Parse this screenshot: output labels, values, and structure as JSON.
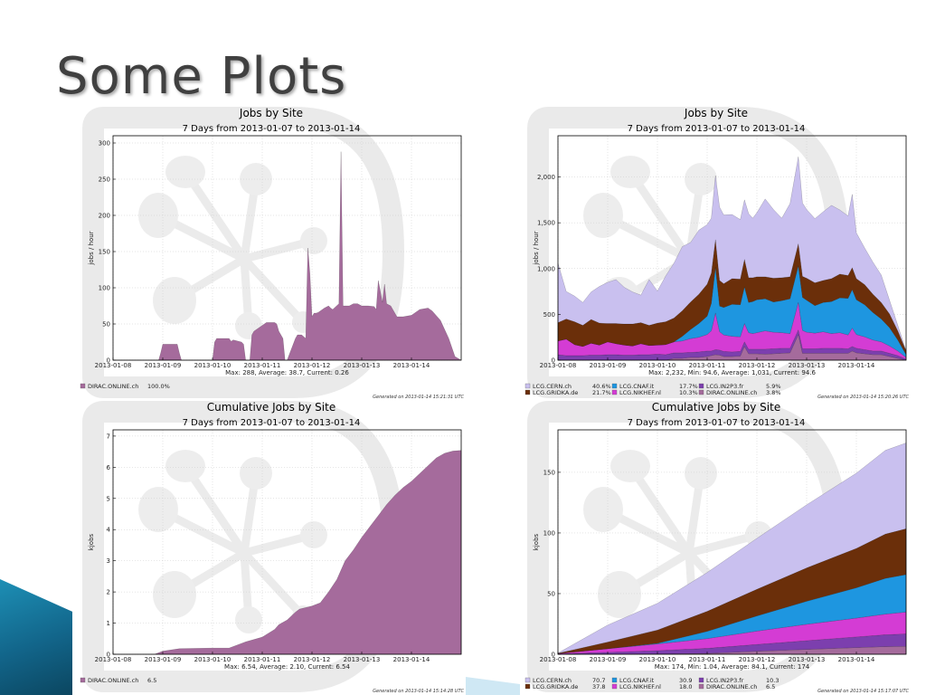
{
  "slide": {
    "title": "Some Plots"
  },
  "chart_data": [
    {
      "type": "area",
      "title": "Jobs by Site",
      "subtitle": "7 Days from 2013-01-07 to 2013-01-14",
      "ylabel": "jobs / hour",
      "xlabel": "",
      "ylim": [
        0,
        310
      ],
      "yticks": [
        0,
        50,
        100,
        150,
        200,
        250,
        300
      ],
      "yticklabels": [
        "0",
        "50",
        "100",
        "150",
        "200",
        "250",
        "300"
      ],
      "xlim": [
        0,
        168
      ],
      "xticks": [
        0,
        24,
        48,
        72,
        96,
        120,
        144
      ],
      "xticklabels": [
        "2013-01-08",
        "2013-01-09",
        "2013-01-10",
        "2013-01-11",
        "2013-01-12",
        "2013-01-13",
        "2013-01-14"
      ],
      "stats": "Max: 288, Average: 38.7, Current: 0.26",
      "generated": "Generated on 2013-01-14 15:21:31 UTC",
      "grid": true,
      "legend": [
        {
          "name": "DIRAC.ONLINE.ch",
          "value": "100.0%",
          "color": "#a56b9c"
        }
      ],
      "x": [
        0,
        22,
        23,
        24,
        31,
        32,
        33,
        48,
        49,
        50,
        56,
        57,
        58,
        62,
        63,
        64,
        66,
        67,
        68,
        72,
        73,
        74,
        78,
        79,
        80,
        82,
        83,
        84,
        88,
        89,
        91,
        93,
        94,
        95,
        96,
        97,
        98,
        99,
        100,
        101,
        102,
        104,
        105,
        106,
        109,
        110,
        111,
        114,
        116,
        118,
        120,
        123,
        126,
        127,
        128,
        130,
        131,
        132,
        134,
        137,
        140,
        144,
        148,
        152,
        154,
        158,
        162,
        165,
        168
      ],
      "series": [
        {
          "name": "DIRAC.ONLINE.ch",
          "color": "#a56b9c",
          "values": [
            0,
            0,
            10,
            22,
            22,
            10,
            0,
            0,
            25,
            30,
            30,
            26,
            28,
            25,
            22,
            0,
            0,
            35,
            40,
            48,
            50,
            52,
            52,
            50,
            40,
            30,
            0,
            0,
            30,
            35,
            35,
            30,
            155,
            120,
            60,
            65,
            65,
            66,
            68,
            70,
            72,
            75,
            72,
            70,
            78,
            288,
            75,
            75,
            78,
            78,
            75,
            75,
            74,
            70,
            110,
            80,
            105,
            78,
            75,
            60,
            60,
            62,
            70,
            72,
            68,
            55,
            30,
            5,
            0
          ]
        }
      ]
    },
    {
      "type": "area",
      "title": "Jobs by Site",
      "subtitle": "7 Days from 2013-01-07 to 2013-01-14",
      "ylabel": "jobs / hour",
      "xlabel": "",
      "ylim": [
        0,
        2450
      ],
      "yticks": [
        0,
        500,
        1000,
        1500,
        2000
      ],
      "yticklabels": [
        "0",
        "500",
        "1,000",
        "1,500",
        "2,000"
      ],
      "xlim": [
        0,
        168
      ],
      "xticks": [
        0,
        24,
        48,
        72,
        96,
        120,
        144
      ],
      "xticklabels": [
        "2013-01-08",
        "2013-01-09",
        "2013-01-10",
        "2013-01-11",
        "2013-01-12",
        "2013-01-13",
        "2013-01-14"
      ],
      "stats": "Max: 2,232, Min: 94.6, Average: 1,031, Current: 94.6",
      "generated": "Generated on 2013-01-14 15:20:26 UTC",
      "grid": true,
      "legend": [
        {
          "name": "LCG.CERN.ch",
          "value": "40.6%",
          "color": "#c9c0ef"
        },
        {
          "name": "LCG.GRIDKA.de",
          "value": "21.7%",
          "color": "#6b2f0a"
        },
        {
          "name": "LCG.CNAF.it",
          "value": "17.7%",
          "color": "#1e96e0"
        },
        {
          "name": "LCG.NIKHEF.nl",
          "value": "10.3%",
          "color": "#d43cd4"
        },
        {
          "name": "LCG.IN2P3.fr",
          "value": "5.9%",
          "color": "#7c3fae"
        },
        {
          "name": "DIRAC.ONLINE.ch",
          "value": "3.8%",
          "color": "#a56b9c"
        }
      ],
      "x": [
        0,
        4,
        8,
        12,
        16,
        20,
        24,
        28,
        32,
        36,
        40,
        44,
        48,
        52,
        56,
        60,
        64,
        68,
        72,
        74,
        76,
        78,
        80,
        84,
        88,
        90,
        92,
        94,
        96,
        100,
        104,
        108,
        112,
        116,
        118,
        120,
        124,
        128,
        132,
        136,
        140,
        142,
        144,
        148,
        152,
        156,
        160,
        164,
        168
      ],
      "series": [
        {
          "name": "DIRAC.ONLINE.ch",
          "color": "#a56b9c",
          "values": [
            0,
            0,
            0,
            0,
            0,
            0,
            0,
            0,
            0,
            0,
            0,
            0,
            0,
            0,
            20,
            20,
            30,
            30,
            40,
            50,
            60,
            55,
            40,
            40,
            45,
            150,
            70,
            70,
            70,
            65,
            70,
            75,
            80,
            280,
            75,
            75,
            75,
            75,
            75,
            75,
            75,
            100,
            80,
            70,
            60,
            60,
            40,
            20,
            0
          ]
        },
        {
          "name": "LCG.IN2P3.fr",
          "color": "#7c3fae",
          "values": [
            60,
            50,
            50,
            50,
            55,
            55,
            60,
            60,
            55,
            55,
            60,
            60,
            65,
            60,
            60,
            60,
            55,
            60,
            60,
            50,
            55,
            55,
            55,
            50,
            50,
            50,
            50,
            50,
            50,
            55,
            55,
            55,
            50,
            50,
            50,
            50,
            50,
            55,
            55,
            55,
            50,
            50,
            50,
            45,
            40,
            40,
            35,
            30,
            10
          ]
        },
        {
          "name": "LCG.NIKHEF.nl",
          "color": "#d43cd4",
          "values": [
            150,
            180,
            120,
            100,
            130,
            110,
            140,
            120,
            110,
            100,
            120,
            100,
            100,
            110,
            120,
            130,
            150,
            160,
            180,
            220,
            400,
            200,
            180,
            170,
            160,
            200,
            180,
            170,
            180,
            200,
            180,
            170,
            160,
            300,
            200,
            180,
            170,
            180,
            160,
            170,
            150,
            200,
            150,
            140,
            120,
            100,
            80,
            50,
            20
          ]
        },
        {
          "name": "LCG.CNAF.it",
          "color": "#1e96e0",
          "values": [
            0,
            0,
            0,
            0,
            0,
            0,
            0,
            0,
            0,
            0,
            0,
            0,
            0,
            0,
            0,
            50,
            100,
            150,
            200,
            300,
            500,
            280,
            300,
            350,
            350,
            400,
            330,
            350,
            360,
            350,
            330,
            350,
            380,
            400,
            360,
            350,
            300,
            320,
            350,
            380,
            400,
            420,
            380,
            350,
            300,
            250,
            200,
            120,
            30
          ]
        },
        {
          "name": "LCG.GRIDKA.de",
          "color": "#6b2f0a",
          "values": [
            200,
            220,
            250,
            230,
            260,
            240,
            200,
            220,
            230,
            240,
            230,
            220,
            240,
            250,
            260,
            280,
            300,
            320,
            350,
            330,
            300,
            280,
            260,
            280,
            280,
            300,
            270,
            260,
            250,
            240,
            260,
            250,
            240,
            240,
            230,
            240,
            250,
            240,
            250,
            260,
            250,
            240,
            230,
            220,
            200,
            180,
            150,
            100,
            40
          ]
        },
        {
          "name": "LCG.CERN.ch",
          "color": "#c9c0ef",
          "values": [
            650,
            300,
            280,
            250,
            300,
            400,
            450,
            480,
            400,
            350,
            300,
            500,
            350,
            500,
            600,
            700,
            650,
            700,
            650,
            600,
            700,
            800,
            750,
            700,
            650,
            650,
            700,
            650,
            700,
            850,
            750,
            650,
            800,
            950,
            800,
            750,
            700,
            750,
            800,
            700,
            650,
            800,
            500,
            400,
            350,
            300,
            150,
            60,
            0
          ]
        }
      ]
    },
    {
      "type": "area",
      "title": "Cumulative Jobs by Site",
      "subtitle": "7 Days from 2013-01-07 to 2013-01-14",
      "ylabel": "kjobs",
      "xlabel": "",
      "ylim": [
        0,
        7.2
      ],
      "yticks": [
        0,
        1,
        2,
        3,
        4,
        5,
        6,
        7
      ],
      "yticklabels": [
        "0",
        "1",
        "2",
        "3",
        "4",
        "5",
        "6",
        "7"
      ],
      "xlim": [
        0,
        168
      ],
      "xticks": [
        0,
        24,
        48,
        72,
        96,
        120,
        144
      ],
      "xticklabels": [
        "2013-01-08",
        "2013-01-09",
        "2013-01-10",
        "2013-01-11",
        "2013-01-12",
        "2013-01-13",
        "2013-01-14"
      ],
      "stats": "Max: 6.54, Average: 2.10, Current: 6.54",
      "generated": "Generated on 2013-01-14 15:14:28 UTC",
      "grid": true,
      "legend": [
        {
          "name": "DIRAC.ONLINE.ch",
          "value": "6.5",
          "color": "#a56b9c"
        }
      ],
      "x": [
        0,
        20,
        24,
        32,
        48,
        56,
        62,
        64,
        72,
        78,
        80,
        84,
        88,
        90,
        93,
        96,
        100,
        104,
        108,
        110,
        112,
        116,
        120,
        124,
        128,
        132,
        136,
        140,
        144,
        148,
        152,
        156,
        160,
        164,
        168
      ],
      "series": [
        {
          "name": "DIRAC.ONLINE.ch",
          "color": "#a56b9c",
          "values": [
            0,
            0,
            0.1,
            0.18,
            0.2,
            0.2,
            0.35,
            0.4,
            0.55,
            0.8,
            0.95,
            1.1,
            1.35,
            1.45,
            1.5,
            1.55,
            1.65,
            2.0,
            2.4,
            2.7,
            3.0,
            3.35,
            3.75,
            4.1,
            4.45,
            4.8,
            5.1,
            5.35,
            5.55,
            5.8,
            6.05,
            6.3,
            6.45,
            6.52,
            6.54
          ]
        }
      ]
    },
    {
      "type": "area",
      "title": "Cumulative Jobs by Site",
      "subtitle": "7 Days from 2013-01-07 to 2013-01-14",
      "ylabel": "kjobs",
      "xlabel": "",
      "ylim": [
        0,
        185
      ],
      "yticks": [
        0,
        50,
        100,
        150
      ],
      "yticklabels": [
        "0",
        "50",
        "100",
        "150"
      ],
      "xlim": [
        0,
        168
      ],
      "xticks": [
        0,
        24,
        48,
        72,
        96,
        120,
        144
      ],
      "xticklabels": [
        "2013-01-08",
        "2013-01-09",
        "2013-01-10",
        "2013-01-11",
        "2013-01-12",
        "2013-01-13",
        "2013-01-14"
      ],
      "stats": "Max: 174, Min: 1.04, Average: 84.1, Current: 174",
      "generated": "Generated on 2013-01-14 15:17:07 UTC",
      "grid": true,
      "legend": [
        {
          "name": "LCG.CERN.ch",
          "value": "70.7",
          "color": "#c9c0ef"
        },
        {
          "name": "LCG.GRIDKA.de",
          "value": "37.8",
          "color": "#6b2f0a"
        },
        {
          "name": "LCG.CNAF.it",
          "value": "30.9",
          "color": "#1e96e0"
        },
        {
          "name": "LCG.NIKHEF.nl",
          "value": "18.0",
          "color": "#d43cd4"
        },
        {
          "name": "LCG.IN2P3.fr",
          "value": "10.3",
          "color": "#7c3fae"
        },
        {
          "name": "DIRAC.ONLINE.ch",
          "value": "6.5",
          "color": "#a56b9c"
        }
      ],
      "x": [
        0,
        24,
        48,
        72,
        96,
        120,
        144,
        158,
        168
      ],
      "series": [
        {
          "name": "DIRAC.ONLINE.ch",
          "color": "#a56b9c",
          "values": [
            0,
            0.1,
            0.2,
            0.7,
            2.5,
            4.0,
            5.5,
            6.3,
            6.5
          ]
        },
        {
          "name": "LCG.IN2P3.fr",
          "color": "#7c3fae",
          "values": [
            0.3,
            1.5,
            2.8,
            4.2,
            5.6,
            7.2,
            8.8,
            9.8,
            10.3
          ]
        },
        {
          "name": "LCG.NIKHEF.nl",
          "color": "#d43cd4",
          "values": [
            0.3,
            3.0,
            5.5,
            8.0,
            11.0,
            13.5,
            15.5,
            17.0,
            18.0
          ]
        },
        {
          "name": "LCG.CNAF.it",
          "color": "#1e96e0",
          "values": [
            0,
            0,
            0.5,
            6.0,
            12.5,
            19.0,
            25.0,
            29.5,
            30.9
          ]
        },
        {
          "name": "LCG.GRIDKA.de",
          "color": "#6b2f0a",
          "values": [
            0.2,
            5.5,
            11.0,
            16.5,
            22.0,
            27.5,
            32.5,
            36.5,
            37.8
          ]
        },
        {
          "name": "LCG.CERN.ch",
          "color": "#c9c0ef",
          "values": [
            0.2,
            14.0,
            22.0,
            32.0,
            42.0,
            52.0,
            62.0,
            69.0,
            70.7
          ]
        }
      ]
    }
  ]
}
